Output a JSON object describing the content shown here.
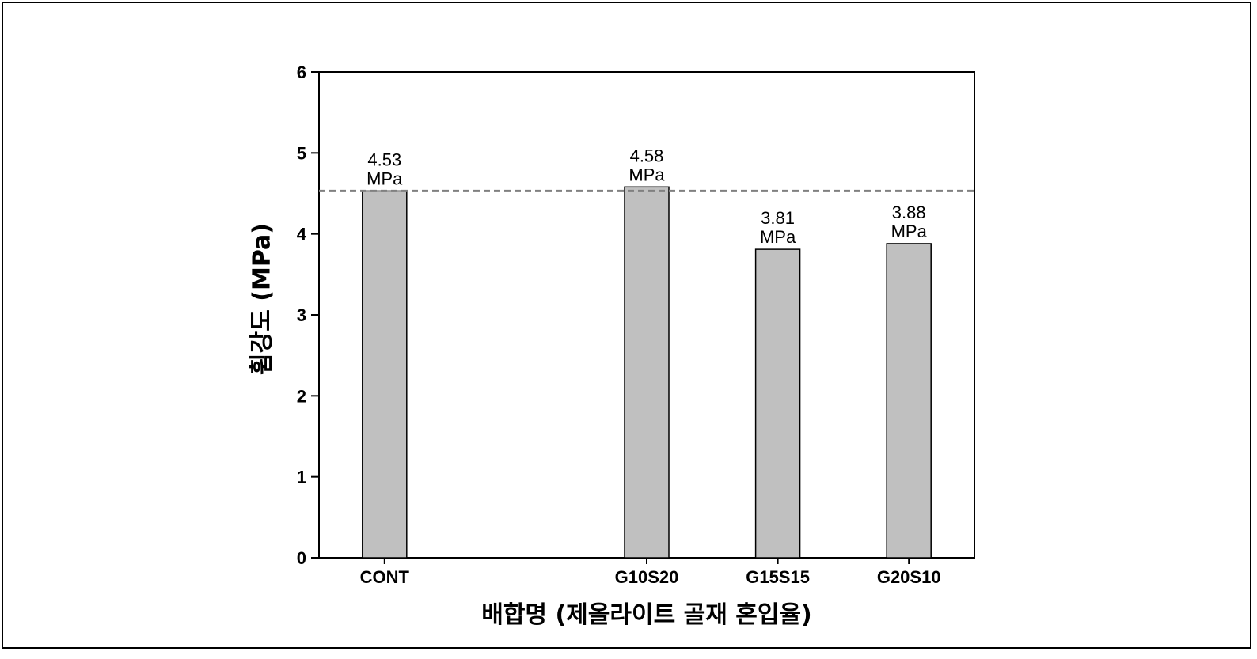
{
  "chart_data": {
    "type": "bar",
    "categories": [
      "CONT",
      "",
      "G10S20",
      "G15S15",
      "G20S10"
    ],
    "values": [
      4.53,
      null,
      4.58,
      3.81,
      3.88
    ],
    "data_labels": [
      {
        "value": "4.53",
        "unit": "MPa"
      },
      null,
      {
        "value": "4.58",
        "unit": "MPa"
      },
      {
        "value": "3.81",
        "unit": "MPa"
      },
      {
        "value": "3.88",
        "unit": "MPa"
      }
    ],
    "xlabel": "배합명 (제올라이트 골재 혼입율)",
    "ylabel": "휨강도 (MPa)",
    "ylim": [
      0,
      6
    ],
    "yticks": [
      0,
      1,
      2,
      3,
      4,
      5,
      6
    ],
    "reference_line": {
      "value": 4.53,
      "style": "dashed"
    },
    "grid": false,
    "legend": "none",
    "colors": {
      "bar_fill": "#c0c0c0",
      "bar_stroke": "#000000",
      "reference_line": "#808080"
    }
  }
}
